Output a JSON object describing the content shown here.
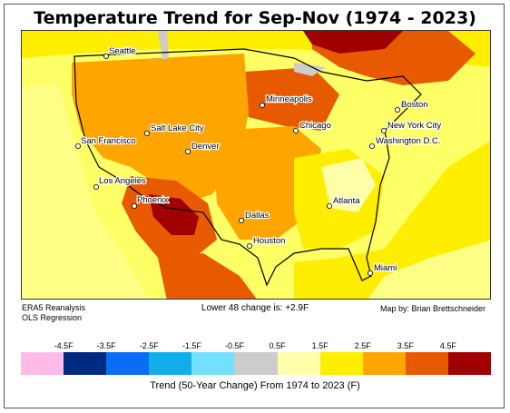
{
  "title": "Temperature Trend for Sep-Nov (1974 - 2023)",
  "notes": {
    "source_line1": "ERA5 Reanalysis",
    "source_line2": "OLS Regression",
    "lower48": "Lower 48 change is: +2.9F",
    "credit": "Map by: Brian Brettschneider"
  },
  "cities": [
    {
      "name": "Seattle"
    },
    {
      "name": "San Francisco"
    },
    {
      "name": "Los Angeles"
    },
    {
      "name": "Phoenix"
    },
    {
      "name": "Salt Lake City"
    },
    {
      "name": "Denver"
    },
    {
      "name": "Minneapolis"
    },
    {
      "name": "Chicago"
    },
    {
      "name": "Dallas"
    },
    {
      "name": "Houston"
    },
    {
      "name": "Atlanta"
    },
    {
      "name": "Miami"
    },
    {
      "name": "Washington D.C."
    },
    {
      "name": "New York City"
    },
    {
      "name": "Boston"
    }
  ],
  "legend": {
    "ticks": [
      "-4.5F",
      "-3.5F",
      "-2.5F",
      "-1.5F",
      "-0.5F",
      "0.5F",
      "1.5F",
      "2.5F",
      "3.5F",
      "4.5F"
    ],
    "colors": [
      "#ffbbe8",
      "#002a7f",
      "#0a6df5",
      "#12aeea",
      "#74e0ff",
      "#cccccc",
      "#ffffaa",
      "#ffee00",
      "#ffa500",
      "#e85a00",
      "#a10000"
    ],
    "title": "Trend (50-Year Change) From 1974 to 2023 (F)"
  }
}
